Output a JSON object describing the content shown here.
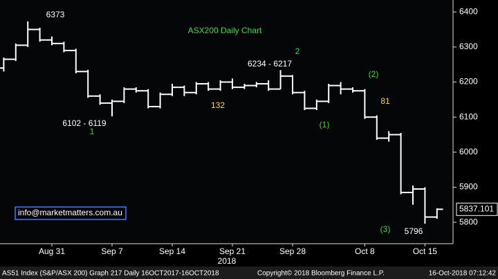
{
  "chart_data": {
    "type": "ohlc",
    "title": "ASX200 Daily Chart",
    "categories": [
      null,
      null,
      null,
      null,
      "Aug 31",
      null,
      null,
      null,
      null,
      "Sep 7",
      null,
      null,
      null,
      null,
      "Sep 14",
      null,
      null,
      null,
      null,
      "Sep 21",
      null,
      null,
      null,
      null,
      "Sep 28",
      null,
      null,
      null,
      null,
      null,
      "Oct 8",
      null,
      null,
      null,
      null,
      "Oct 15",
      null
    ],
    "open": [
      6240,
      6265,
      6305,
      6350,
      6320,
      6310,
      6290,
      6230,
      6160,
      6140,
      6145,
      6180,
      6175,
      6130,
      6165,
      6185,
      6170,
      6195,
      6180,
      6200,
      6185,
      6190,
      6195,
      6180,
      6217,
      6170,
      6125,
      6145,
      6190,
      6180,
      6175,
      6100,
      6040,
      6050,
      5885,
      5895,
      5815
    ],
    "high": [
      6270,
      6310,
      6373,
      6355,
      6330,
      6315,
      6295,
      6235,
      6165,
      6150,
      6185,
      6185,
      6180,
      6170,
      6195,
      6190,
      6200,
      6200,
      6205,
      6210,
      6195,
      6200,
      6205,
      6234,
      6220,
      6175,
      6150,
      6195,
      6200,
      6185,
      6180,
      6105,
      6060,
      6055,
      5905,
      5900,
      5840
    ],
    "low": [
      6230,
      6260,
      6300,
      6315,
      6305,
      6285,
      6225,
      6155,
      6135,
      6102,
      6140,
      6170,
      6125,
      6125,
      6160,
      6160,
      6165,
      6175,
      6175,
      6180,
      6180,
      6185,
      6175,
      6180,
      6165,
      6120,
      6120,
      6140,
      6165,
      6170,
      6095,
      6035,
      6030,
      5880,
      5850,
      5796,
      5810
    ],
    "close": [
      6265,
      6305,
      6350,
      6320,
      6310,
      6290,
      6230,
      6160,
      6140,
      6145,
      6180,
      6175,
      6130,
      6165,
      6185,
      6170,
      6195,
      6180,
      6200,
      6185,
      6190,
      6195,
      6180,
      6217,
      6170,
      6125,
      6145,
      6190,
      6180,
      6175,
      6100,
      6040,
      6050,
      5885,
      5895,
      5815,
      5837.101
    ],
    "color": "#ffffff",
    "ylim": [
      5739,
      6434
    ],
    "yticks": [
      5800,
      5900,
      6000,
      6100,
      6200,
      6300,
      6400
    ],
    "grid": false,
    "xlabel": "2018",
    "last_value": 5837.101,
    "annotations": [
      {
        "text": "6373",
        "color": "#ffffff"
      },
      {
        "text": "2",
        "color": "#33dd33"
      },
      {
        "text": "6234 - 6217",
        "color": "#ffffff"
      },
      {
        "text": "(2)",
        "color": "#33dd33"
      },
      {
        "text": "81",
        "color": "#ffdd00"
      },
      {
        "text": "132",
        "color": "#ffdd00"
      },
      {
        "text": "(1)",
        "color": "#33dd33"
      },
      {
        "text": "6102 - 6119",
        "color": "#ffffff"
      },
      {
        "text": "1",
        "color": "#33dd33"
      },
      {
        "text": "(3)",
        "color": "#33dd33"
      },
      {
        "text": "5796",
        "color": "#ffffff"
      }
    ],
    "title_color": "#33dd33",
    "watermark": "info@marketmatters.com.au"
  },
  "footer": {
    "left": "AS51 Index (S&P/ASX 200) Graph 217  Daily 16OCT2017-16OCT2018",
    "center": "Copyright© 2018 Bloomberg Finance L.P.",
    "right": "16-Oct-2018 07:12:42"
  }
}
